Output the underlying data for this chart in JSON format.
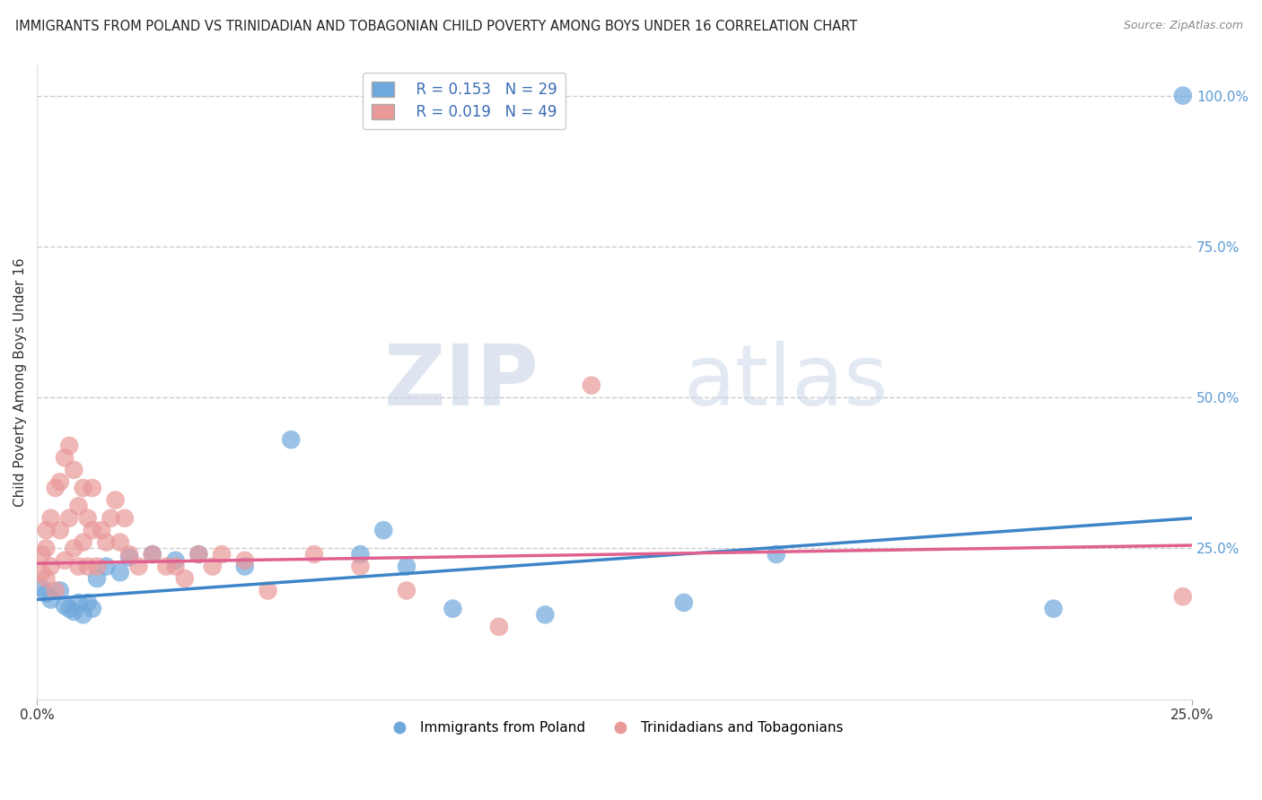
{
  "title": "IMMIGRANTS FROM POLAND VS TRINIDADIAN AND TOBAGONIAN CHILD POVERTY AMONG BOYS UNDER 16 CORRELATION CHART",
  "source": "Source: ZipAtlas.com",
  "ylabel": "Child Poverty Among Boys Under 16",
  "blue_color": "#6fa8dc",
  "pink_color": "#ea9999",
  "blue_line_color": "#3d85c8",
  "pink_line_color": "#e06090",
  "legend_blue_R": "R = 0.153",
  "legend_blue_N": "N = 29",
  "legend_pink_R": "R = 0.019",
  "legend_pink_N": "N = 49",
  "blue_scatter_x": [
    0.001,
    0.002,
    0.003,
    0.005,
    0.006,
    0.007,
    0.008,
    0.009,
    0.01,
    0.011,
    0.012,
    0.013,
    0.015,
    0.018,
    0.02,
    0.025,
    0.03,
    0.035,
    0.045,
    0.055,
    0.07,
    0.075,
    0.08,
    0.09,
    0.11,
    0.14,
    0.16,
    0.22,
    0.248
  ],
  "blue_scatter_y": [
    0.185,
    0.175,
    0.165,
    0.18,
    0.155,
    0.15,
    0.145,
    0.16,
    0.14,
    0.16,
    0.15,
    0.2,
    0.22,
    0.21,
    0.235,
    0.24,
    0.23,
    0.24,
    0.22,
    0.43,
    0.24,
    0.28,
    0.22,
    0.15,
    0.14,
    0.16,
    0.24,
    0.15,
    1.0
  ],
  "pink_scatter_x": [
    0.001,
    0.001,
    0.002,
    0.002,
    0.002,
    0.003,
    0.003,
    0.004,
    0.004,
    0.005,
    0.005,
    0.006,
    0.006,
    0.007,
    0.007,
    0.008,
    0.008,
    0.009,
    0.009,
    0.01,
    0.01,
    0.011,
    0.011,
    0.012,
    0.012,
    0.013,
    0.014,
    0.015,
    0.016,
    0.017,
    0.018,
    0.019,
    0.02,
    0.022,
    0.025,
    0.028,
    0.03,
    0.032,
    0.035,
    0.038,
    0.04,
    0.045,
    0.05,
    0.06,
    0.07,
    0.08,
    0.1,
    0.12,
    0.248
  ],
  "pink_scatter_y": [
    0.21,
    0.24,
    0.25,
    0.28,
    0.2,
    0.3,
    0.22,
    0.35,
    0.18,
    0.36,
    0.28,
    0.4,
    0.23,
    0.42,
    0.3,
    0.38,
    0.25,
    0.32,
    0.22,
    0.26,
    0.35,
    0.3,
    0.22,
    0.28,
    0.35,
    0.22,
    0.28,
    0.26,
    0.3,
    0.33,
    0.26,
    0.3,
    0.24,
    0.22,
    0.24,
    0.22,
    0.22,
    0.2,
    0.24,
    0.22,
    0.24,
    0.23,
    0.18,
    0.24,
    0.22,
    0.18,
    0.12,
    0.52,
    0.17
  ],
  "watermark_zip": "ZIP",
  "watermark_atlas": "atlas",
  "background_color": "#ffffff",
  "grid_color": "#cccccc",
  "xlim": [
    0,
    0.25
  ],
  "ylim": [
    0,
    1.05
  ],
  "yticks": [
    0.25,
    0.5,
    0.75,
    1.0
  ],
  "ytick_labels": [
    "25.0%",
    "50.0%",
    "75.0%",
    "100.0%"
  ],
  "xticks": [
    0.0,
    0.25
  ],
  "xtick_labels": [
    "0.0%",
    "25.0%"
  ]
}
